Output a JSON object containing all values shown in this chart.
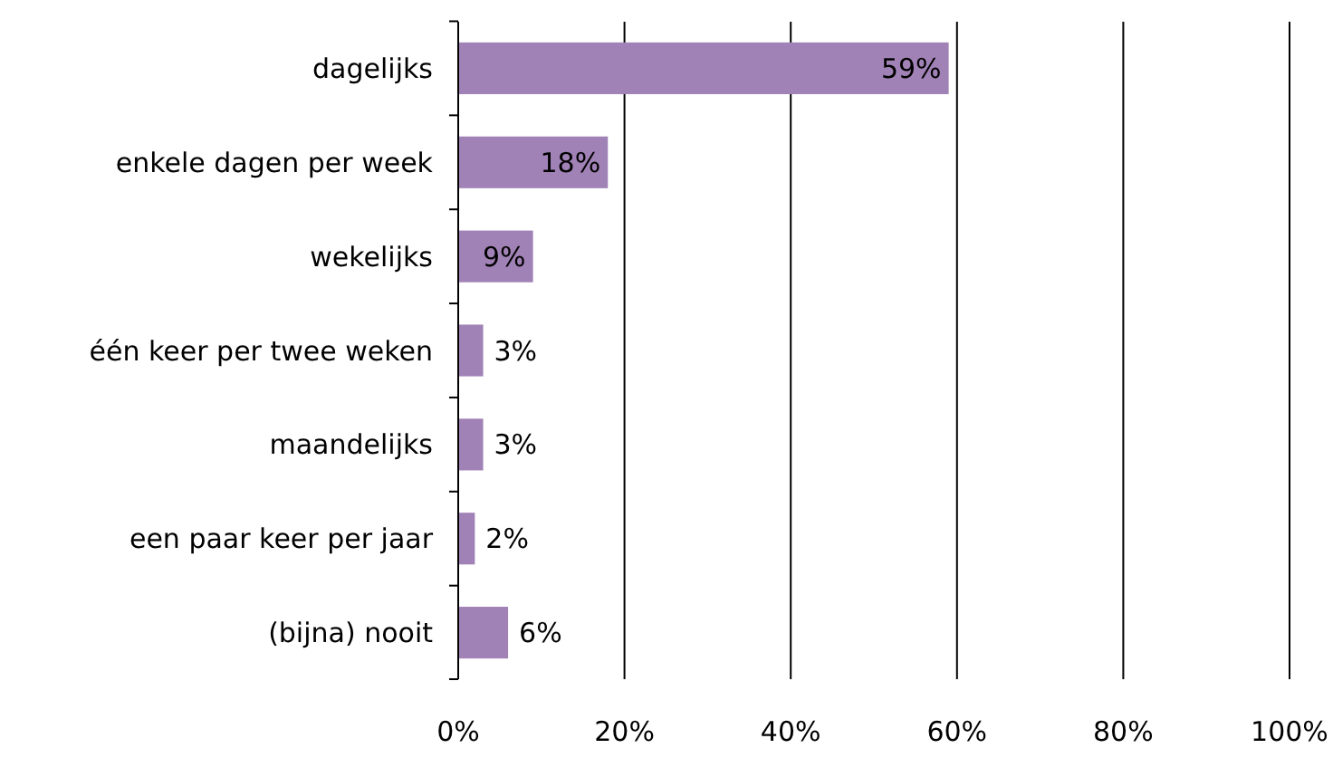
{
  "chart_data": {
    "type": "bar",
    "orientation": "horizontal",
    "categories": [
      "dagelijks",
      "enkele dagen per week",
      "wekelijks",
      "één keer per twee weken",
      "maandelijks",
      "een paar keer per jaar",
      "(bijna) nooit"
    ],
    "values": [
      59,
      18,
      9,
      3,
      3,
      2,
      6
    ],
    "value_labels": [
      "59%",
      "18%",
      "9%",
      "3%",
      "3%",
      "2%",
      "6%"
    ],
    "color": "#a182b6",
    "xlim": [
      0,
      100
    ],
    "xticks": [
      {
        "value": 0,
        "label": "0%"
      },
      {
        "value": 20,
        "label": "20%"
      },
      {
        "value": 40,
        "label": "40%"
      },
      {
        "value": 60,
        "label": "60%"
      },
      {
        "value": 80,
        "label": "80%"
      },
      {
        "value": 100,
        "label": "100%"
      }
    ],
    "grid": "x"
  }
}
